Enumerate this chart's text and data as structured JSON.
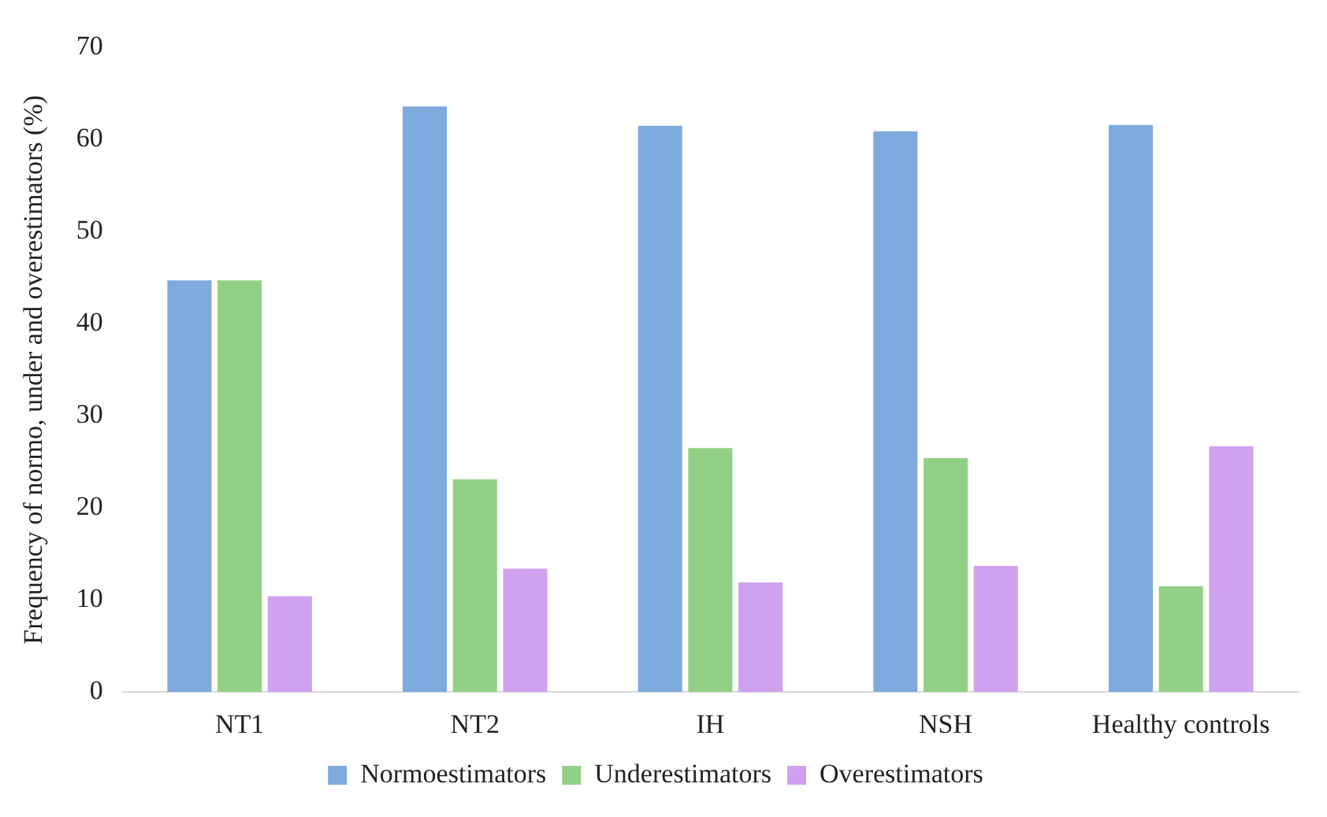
{
  "chart_data": {
    "type": "bar",
    "ylabel": "Frequency of normo, under and overestimators (%)",
    "categories": [
      "NT1",
      "NT2",
      "IH",
      "NSH",
      "Healthy controls"
    ],
    "series": [
      {
        "name": "Normoestimators",
        "color": "#7eaadd",
        "values": [
          44.7,
          63.6,
          61.5,
          60.9,
          61.6
        ]
      },
      {
        "name": "Underestimators",
        "color": "#92d085",
        "values": [
          44.7,
          23.1,
          26.5,
          25.4,
          11.5
        ]
      },
      {
        "name": "Overestimators",
        "color": "#cfa1ee",
        "values": [
          10.4,
          13.4,
          11.9,
          13.7,
          26.7
        ]
      }
    ],
    "ylim": [
      0,
      70
    ],
    "yticks": [
      0,
      10,
      20,
      30,
      40,
      50,
      60,
      70
    ],
    "grid": false,
    "legend": "bottom"
  }
}
